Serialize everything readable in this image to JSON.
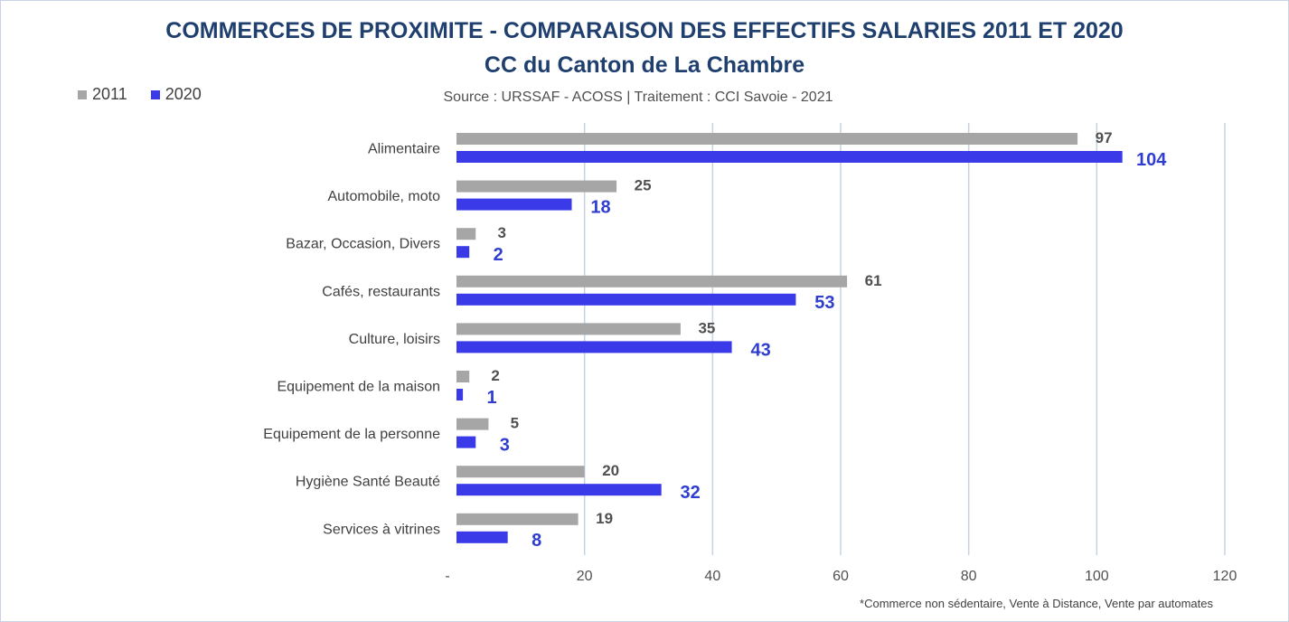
{
  "chart_data": {
    "type": "bar",
    "orientation": "horizontal",
    "title": "COMMERCES DE PROXIMITE - COMPARAISON DES EFFECTIFS SALARIES 2011 ET 2020",
    "subtitle": "CC du Canton de La Chambre",
    "source": "Source  : URSSAF - ACOSS  |  Traitement : CCI Savoie - 2021",
    "footnote": "*Commerce non sédentaire, Vente à Distance, Vente par automates",
    "categories": [
      "Alimentaire",
      "Automobile, moto",
      "Bazar, Occasion, Divers",
      "Cafés, restaurants",
      "Culture, loisirs",
      "Equipement de la maison",
      "Equipement de la personne",
      "Hygiène Santé Beauté",
      "Services à vitrines"
    ],
    "series": [
      {
        "name": "2011",
        "color": "#a6a6a6",
        "values": [
          97,
          25,
          3,
          61,
          35,
          2,
          5,
          20,
          19
        ]
      },
      {
        "name": "2020",
        "color": "#3a3ae8",
        "values": [
          104,
          18,
          2,
          53,
          43,
          1,
          3,
          32,
          8
        ]
      }
    ],
    "xlim": [
      0,
      120
    ],
    "xticks": [
      0,
      20,
      40,
      60,
      80,
      100,
      120
    ],
    "xtick_labels": [
      "-",
      "20",
      "40",
      "60",
      "80",
      "100",
      "120"
    ],
    "grid": true,
    "legend_position": "top-left"
  }
}
